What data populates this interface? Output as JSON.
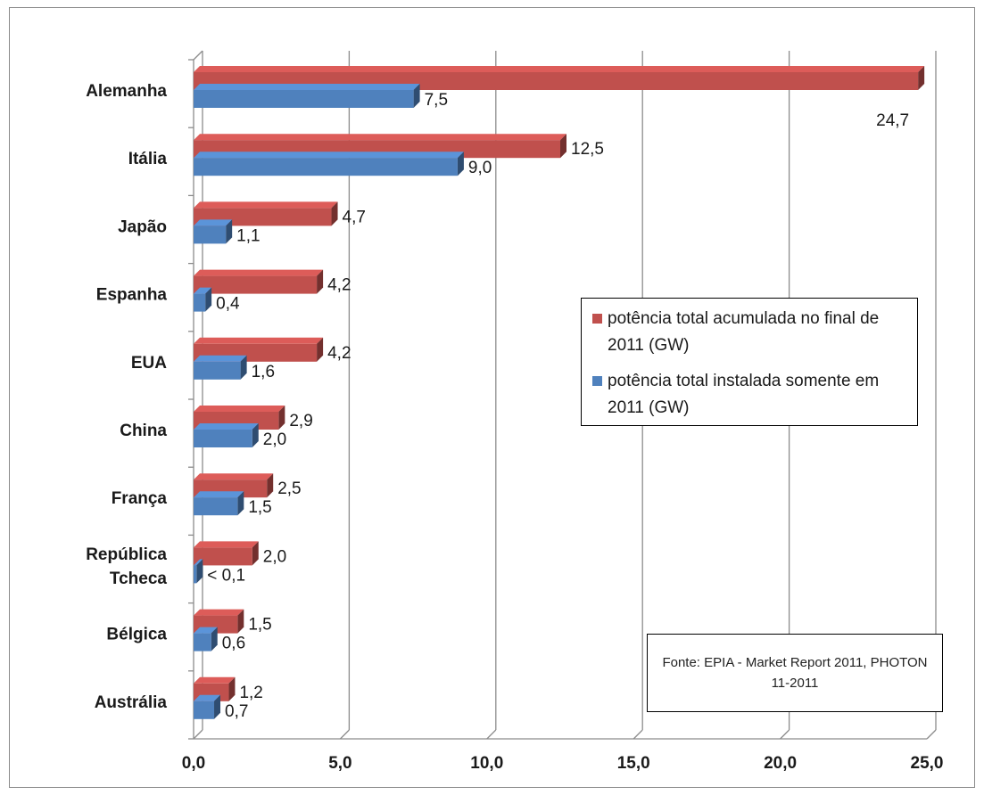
{
  "chart_data": {
    "type": "bar",
    "orientation": "horizontal",
    "categories": [
      "Alemanha",
      "Itália",
      "Japão",
      "Espanha",
      "EUA",
      "China",
      "França",
      "República Tcheca",
      "Bélgica",
      "Austrália"
    ],
    "category_lines": [
      [
        "Alemanha"
      ],
      [
        "Itália"
      ],
      [
        "Japão"
      ],
      [
        "Espanha"
      ],
      [
        "EUA"
      ],
      [
        "China"
      ],
      [
        "França"
      ],
      [
        "República",
        "Tcheca"
      ],
      [
        "Bélgica"
      ],
      [
        "Austrália"
      ]
    ],
    "series": [
      {
        "name": "potência total acumulada no final de 2011 (GW)",
        "color": "#c0504d",
        "values": [
          24.7,
          12.5,
          4.7,
          4.2,
          4.2,
          2.9,
          2.5,
          2.0,
          1.5,
          1.2
        ],
        "labels": [
          "24,7",
          "12,5",
          "4,7",
          "4,2",
          "4,2",
          "2,9",
          "2,5",
          "2,0",
          "1,5",
          "1,2"
        ]
      },
      {
        "name": "potência total instalada somente em 2011 (GW)",
        "color": "#4f81bd",
        "values": [
          7.5,
          9.0,
          1.1,
          0.4,
          1.6,
          2.0,
          1.5,
          0.1,
          0.6,
          0.7
        ],
        "labels": [
          "7,5",
          "9,0",
          "1,1",
          "0,4",
          "1,6",
          "2,0",
          "1,5",
          "< 0,1",
          "0,6",
          "0,7"
        ]
      }
    ],
    "xlim": [
      0,
      25
    ],
    "x_ticks": [
      "0,0",
      "5,0",
      "10,0",
      "15,0",
      "20,0",
      "25,0"
    ],
    "gridlines": "vertical",
    "legend": "right",
    "source": "Fonte: EPIA - Market Report 2011, PHOTON 11-2011"
  }
}
